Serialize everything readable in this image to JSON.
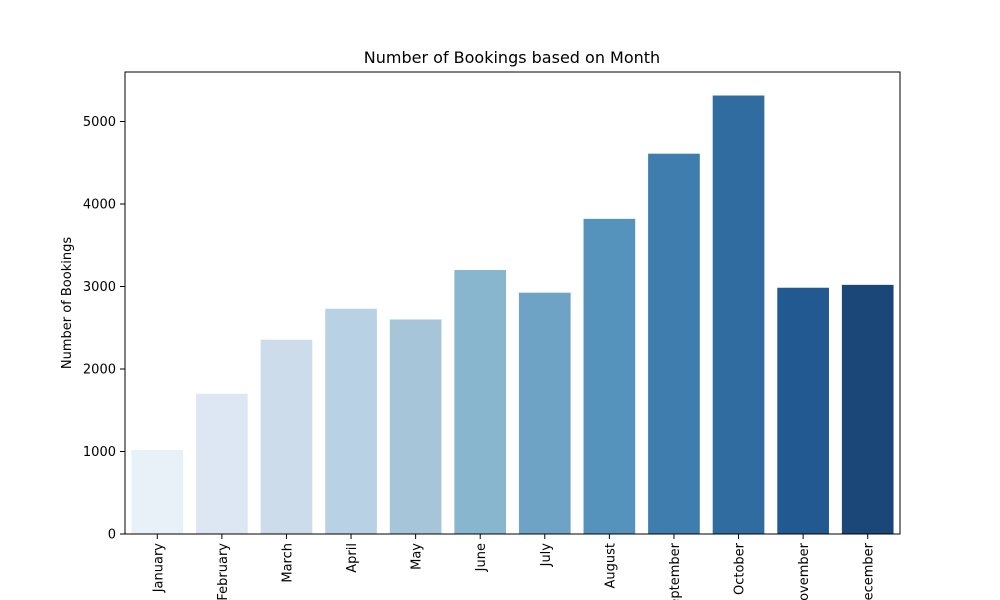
{
  "chart_data": {
    "type": "bar",
    "title": "Number of Bookings based on Month",
    "xlabel": "",
    "ylabel": "Number of Bookings",
    "categories": [
      "January",
      "February",
      "March",
      "April",
      "May",
      "June",
      "July",
      "August",
      "September",
      "October",
      "November",
      "December"
    ],
    "values": [
      1020,
      1700,
      2355,
      2730,
      2600,
      3200,
      2925,
      3820,
      4610,
      5315,
      2985,
      3020
    ],
    "ylim": [
      0,
      5600
    ],
    "yticks": [
      "0",
      "1000",
      "2000",
      "3000",
      "4000",
      "5000"
    ],
    "grid": false,
    "colors": [
      "#e8f0f8",
      "#dce7f3",
      "#ccdcea",
      "#b9d1e4",
      "#a6c5d8",
      "#89b6cf",
      "#6fa3c5",
      "#5592bc",
      "#3f7dae",
      "#306ca0",
      "#235991",
      "#1a4678"
    ]
  }
}
